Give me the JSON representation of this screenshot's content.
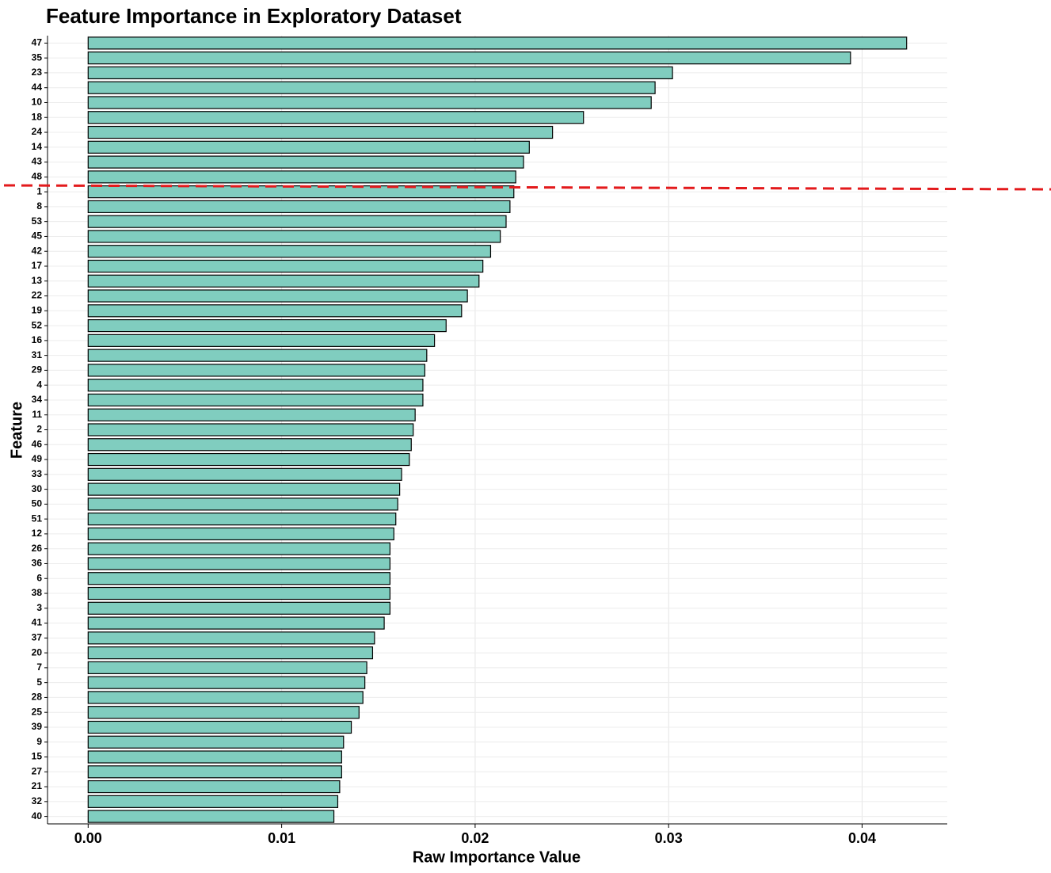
{
  "chart_data": {
    "type": "bar",
    "orientation": "horizontal",
    "title": "Feature Importance in Exploratory Dataset",
    "x_label": "Raw Importance Value",
    "y_label": "Feature",
    "categories": [
      "47",
      "35",
      "23",
      "44",
      "10",
      "18",
      "24",
      "14",
      "43",
      "48",
      "1",
      "8",
      "53",
      "45",
      "42",
      "17",
      "13",
      "22",
      "19",
      "52",
      "16",
      "31",
      "29",
      "4",
      "34",
      "11",
      "2",
      "46",
      "49",
      "33",
      "30",
      "50",
      "51",
      "12",
      "26",
      "36",
      "6",
      "38",
      "3",
      "41",
      "37",
      "20",
      "7",
      "5",
      "28",
      "25",
      "39",
      "9",
      "15",
      "27",
      "21",
      "32",
      "40"
    ],
    "values": [
      0.0423,
      0.0394,
      0.0302,
      0.0293,
      0.0291,
      0.0256,
      0.024,
      0.0228,
      0.0225,
      0.0221,
      0.022,
      0.0218,
      0.0216,
      0.0213,
      0.0208,
      0.0204,
      0.0202,
      0.0196,
      0.0193,
      0.0185,
      0.0179,
      0.0175,
      0.0174,
      0.0173,
      0.0173,
      0.0169,
      0.0168,
      0.0167,
      0.0166,
      0.0162,
      0.0161,
      0.016,
      0.0159,
      0.0158,
      0.0156,
      0.0156,
      0.0156,
      0.0156,
      0.0156,
      0.0153,
      0.0148,
      0.0147,
      0.0144,
      0.0143,
      0.0142,
      0.014,
      0.0136,
      0.0132,
      0.0131,
      0.0131,
      0.013,
      0.0129,
      0.0127
    ],
    "color": "#80cdbf",
    "xlim": [
      -0.0021,
      0.0444
    ],
    "xticks": [
      {
        "value": 0,
        "label": "0.00"
      },
      0.01,
      0.02,
      0.03,
      0.04
    ],
    "grid": true
  }
}
